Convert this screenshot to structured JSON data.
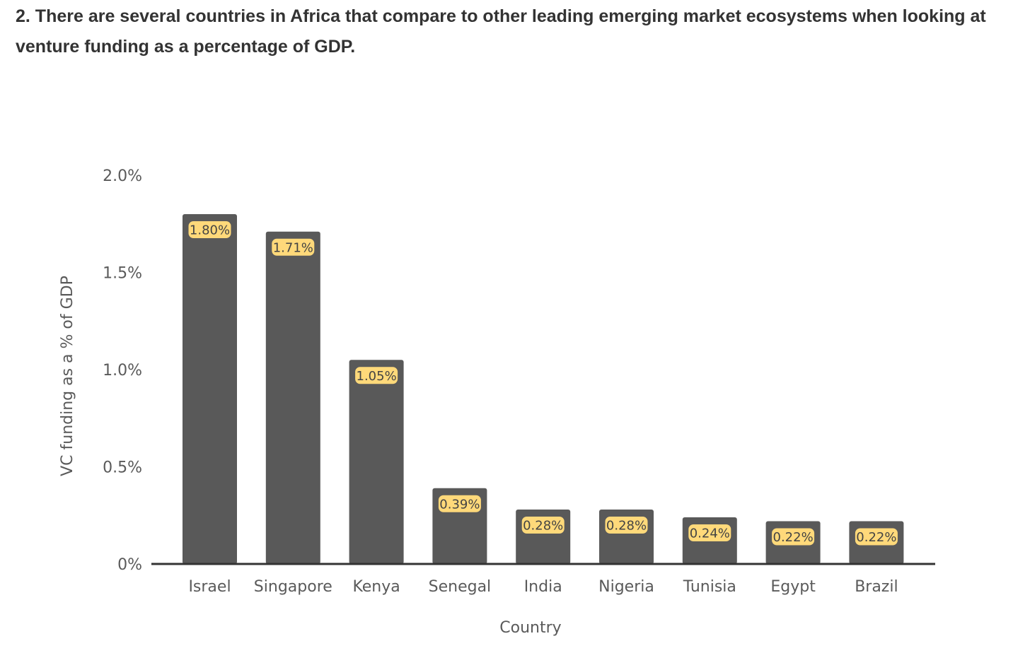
{
  "heading": "2. There are several countries in Africa that compare to other leading emerging market ecosystems when looking at venture funding as a percentage of GDP.",
  "colors": {
    "bar": "#595959",
    "label_bg": "#ffd97a",
    "axis": "#333333",
    "text": "#5a5a5a"
  },
  "chart_data": {
    "type": "bar",
    "title": "",
    "xlabel": "Country",
    "ylabel": "VC funding as a % of GDP",
    "categories": [
      "Israel",
      "Singapore",
      "Kenya",
      "Senegal",
      "India",
      "Nigeria",
      "Tunisia",
      "Egypt",
      "Brazil"
    ],
    "values": [
      1.8,
      1.71,
      1.05,
      0.39,
      0.28,
      0.28,
      0.24,
      0.22,
      0.22
    ],
    "data_labels": [
      "1.80%",
      "1.71%",
      "1.05%",
      "0.39%",
      "0.28%",
      "0.28%",
      "0.24%",
      "0.22%",
      "0.22%"
    ],
    "ylim": [
      0,
      2.0
    ],
    "yticks": [
      0,
      0.5,
      1.0,
      1.5,
      2.0
    ],
    "ytick_labels": [
      "0%",
      "0.5%",
      "1.0%",
      "1.5%",
      "2.0%"
    ],
    "grid": false,
    "legend": "none"
  }
}
